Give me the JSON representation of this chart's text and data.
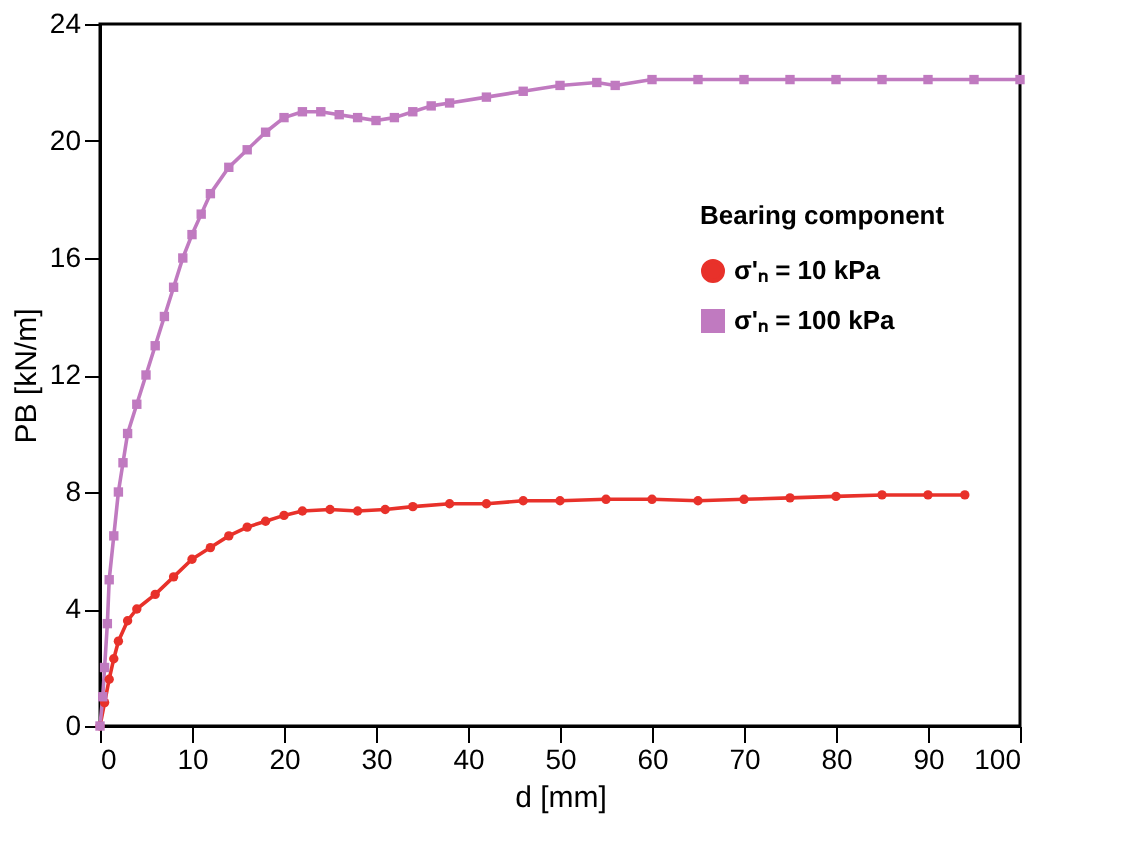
{
  "chart_data": {
    "type": "line",
    "xlabel": "d [mm]",
    "ylabel": "PB [kN/m]",
    "legend_title": "Bearing component",
    "xlim": [
      0,
      100
    ],
    "xticks": [
      0,
      10,
      20,
      30,
      40,
      50,
      60,
      70,
      80,
      90,
      100
    ],
    "ylim": [
      0,
      24
    ],
    "yticks": [
      0,
      4,
      8,
      12,
      16,
      20,
      24
    ],
    "grid": false,
    "legend": "right",
    "series": [
      {
        "name": "σ'ₙ = 10 kPa",
        "color": "#e8312a",
        "marker": "circle",
        "x": [
          0,
          0.5,
          1,
          1.5,
          2,
          3,
          4,
          6,
          8,
          10,
          12,
          14,
          16,
          18,
          20,
          22,
          25,
          28,
          31,
          34,
          38,
          42,
          46,
          50,
          55,
          60,
          65,
          70,
          75,
          80,
          85,
          90,
          94
        ],
        "values": [
          0,
          0.8,
          1.6,
          2.3,
          2.9,
          3.6,
          4.0,
          4.5,
          5.1,
          5.7,
          6.1,
          6.5,
          6.8,
          7.0,
          7.2,
          7.35,
          7.4,
          7.35,
          7.4,
          7.5,
          7.6,
          7.6,
          7.7,
          7.7,
          7.75,
          7.75,
          7.7,
          7.75,
          7.8,
          7.85,
          7.9,
          7.9,
          7.9
        ]
      },
      {
        "name": "σ'ₙ = 100 kPa",
        "color": "#c07ac0",
        "marker": "square",
        "x": [
          0,
          0.3,
          0.5,
          0.8,
          1,
          1.5,
          2,
          2.5,
          3,
          4,
          5,
          6,
          7,
          8,
          9,
          10,
          11,
          12,
          14,
          16,
          18,
          20,
          22,
          24,
          26,
          28,
          30,
          32,
          34,
          36,
          38,
          42,
          46,
          50,
          54,
          56,
          60,
          65,
          70,
          75,
          80,
          85,
          90,
          95,
          100
        ],
        "values": [
          0,
          1,
          2,
          3.5,
          5,
          6.5,
          8,
          9,
          10,
          11,
          12,
          13,
          14,
          15,
          16,
          16.8,
          17.5,
          18.2,
          19.1,
          19.7,
          20.3,
          20.8,
          21.0,
          21.0,
          20.9,
          20.8,
          20.7,
          20.8,
          21.0,
          21.2,
          21.3,
          21.5,
          21.7,
          21.9,
          22.0,
          21.9,
          22.1,
          22.1,
          22.1,
          22.1,
          22.1,
          22.1,
          22.1,
          22.1,
          22.1
        ]
      }
    ]
  }
}
